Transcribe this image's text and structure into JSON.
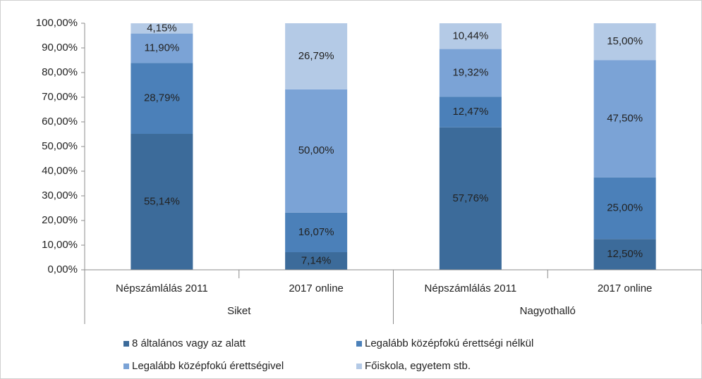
{
  "chart_data": {
    "type": "stacked_bar",
    "categories": [
      "Népszámlálás 2011",
      "2017 online",
      "Népszámlálás 2011",
      "2017 online"
    ],
    "groups": [
      "Siket",
      "Nagyothalló"
    ],
    "series": [
      {
        "name": "8 általános vagy az alatt",
        "color": "#3c6b9a",
        "values": [
          55.14,
          7.14,
          57.76,
          12.5
        ],
        "value_labels": [
          "55,14%",
          "7,14%",
          "57,76%",
          "12,50%"
        ]
      },
      {
        "name": "Legalább középfokú érettségi nélkül",
        "color": "#4b80b9",
        "values": [
          28.79,
          16.07,
          12.47,
          25.0
        ],
        "value_labels": [
          "28,79%",
          "16,07%",
          "12,47%",
          "25,00%"
        ]
      },
      {
        "name": "Legalább középfokú érettségivel",
        "color": "#7ba3d6",
        "values": [
          11.9,
          50.0,
          19.32,
          47.5
        ],
        "value_labels": [
          "11,90%",
          "50,00%",
          "19,32%",
          "47,50%"
        ]
      },
      {
        "name": "Főiskola, egyetem stb.",
        "color": "#b4cae6",
        "values": [
          4.15,
          26.79,
          10.44,
          15.0
        ],
        "value_labels": [
          "4,15%",
          "26,79%",
          "10,44%",
          "15,00%"
        ]
      }
    ],
    "ylim": [
      0,
      100
    ],
    "yticks": [
      {
        "value": 0,
        "label": "0,00%"
      },
      {
        "value": 10,
        "label": "10,00%"
      },
      {
        "value": 20,
        "label": "20,00%"
      },
      {
        "value": 30,
        "label": "30,00%"
      },
      {
        "value": 40,
        "label": "40,00%"
      },
      {
        "value": 50,
        "label": "50,00%"
      },
      {
        "value": 60,
        "label": "60,00%"
      },
      {
        "value": 70,
        "label": "70,00%"
      },
      {
        "value": 80,
        "label": "80,00%"
      },
      {
        "value": 90,
        "label": "90,00%"
      },
      {
        "value": 100,
        "label": "100,00%"
      }
    ],
    "legend": "bottom"
  }
}
